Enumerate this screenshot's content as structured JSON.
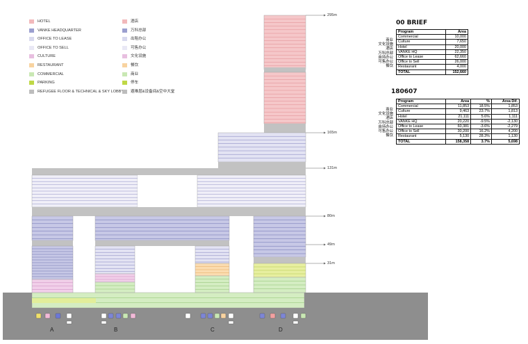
{
  "legend_en": [
    {
      "label": "HOTEL",
      "color": "#f2b9bb"
    },
    {
      "label": "VANKE HEADQUARTER",
      "color": "#9b9fcf"
    },
    {
      "label": "OFFICE TO LEASE",
      "color": "#d8d9ee"
    },
    {
      "label": "OFFICE TO SELL",
      "color": "#e9e8f5"
    },
    {
      "label": "CULTURE",
      "color": "#e8bfe0"
    },
    {
      "label": "RESTAURANT",
      "color": "#f8d3a0"
    },
    {
      "label": "COMMERCIAL",
      "color": "#c9e8b4"
    },
    {
      "label": "PARKING",
      "color": "#bfd846"
    },
    {
      "label": "REFUGEE FLOOR & TECHNICAL & SKY LOBBY",
      "color": "#bdbdbd"
    }
  ],
  "legend_cn": [
    {
      "label": "酒店",
      "color": "#f2b9bb"
    },
    {
      "label": "万科总部",
      "color": "#9b9fcf"
    },
    {
      "label": "出租办公",
      "color": "#d8d9ee"
    },
    {
      "label": "可售办公",
      "color": "#e9e8f5"
    },
    {
      "label": "文化设施",
      "color": "#e8bfe0"
    },
    {
      "label": "餐饮",
      "color": "#f8d3a0"
    },
    {
      "label": "商业",
      "color": "#c9e8b4"
    },
    {
      "label": "停车",
      "color": "#bfd846"
    },
    {
      "label": "避难层&设备间&空中大堂",
      "color": "#bdbdbd"
    }
  ],
  "levels": [
    "295m",
    "165m",
    "131m",
    "80m",
    "49m",
    "31m"
  ],
  "columns": [
    "A",
    "B",
    "C",
    "D"
  ],
  "brief": {
    "title": "00 BRIEF",
    "headers": [
      "Program",
      "Area"
    ],
    "cn_labels": [
      "商业",
      "文化设施",
      "酒店",
      "万科总部",
      "自持办公",
      "可售办公",
      "餐饮"
    ],
    "rows": [
      [
        "Commercial",
        "10,000"
      ],
      [
        "Culture",
        "7,650"
      ],
      [
        "Hotel",
        "20,000"
      ],
      [
        "VANKE HQ",
        "22,350"
      ],
      [
        "Office to Lease",
        "62,660"
      ],
      [
        "Office to Sell",
        "26,000"
      ],
      [
        "Restaurant",
        "4,000"
      ]
    ],
    "total": [
      "TOTAL",
      "152,660"
    ]
  },
  "scheme": {
    "title": "180607",
    "headers": [
      "Program",
      "Area",
      "%",
      "Area Dif."
    ],
    "cn_labels": [
      "商业",
      "文化设施",
      "酒店",
      "万科总部",
      "自持办公",
      "可售办公",
      "餐饮"
    ],
    "rows": [
      [
        "Commercial",
        "11,853",
        "18.5%",
        "1,853"
      ],
      [
        "Culture",
        "9,463",
        "23.7%",
        "1,813"
      ],
      [
        "Hotel",
        "21,111",
        "5.6%",
        "1,111"
      ],
      [
        "VANKE HQ",
        "20,220",
        "-9.5%",
        "-2,130"
      ],
      [
        "Office to Lease",
        "60,381",
        "-3.6%",
        "-2,279"
      ],
      [
        "Office to Sell",
        "30,200",
        "16.2%",
        "4,200"
      ],
      [
        "Restaurant",
        "5,130",
        "28.3%",
        "1,130"
      ]
    ],
    "total": [
      "TOTAL",
      "158,358",
      "3.7%",
      "5,698"
    ]
  },
  "colors": {
    "ground": "#8c8c8c",
    "line": "#4a4a6a"
  }
}
